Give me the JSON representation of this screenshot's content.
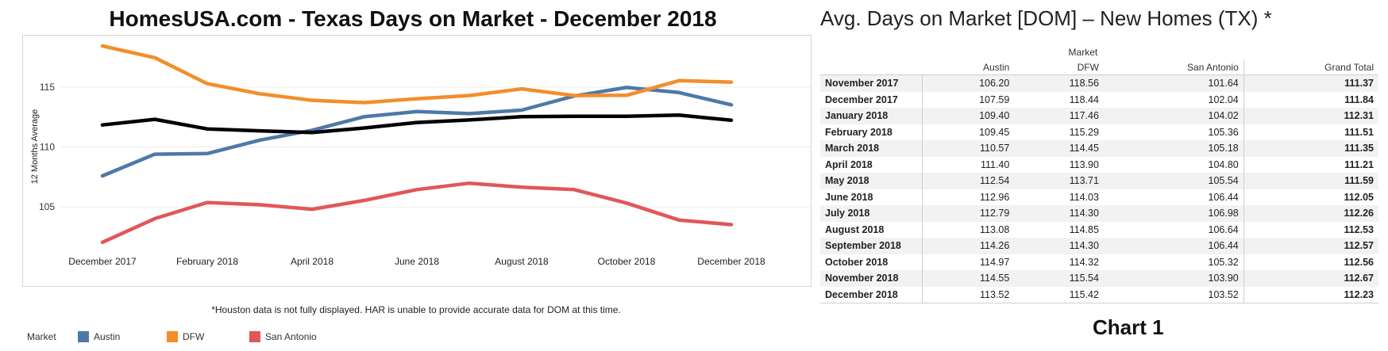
{
  "chart_data": [
    {
      "type": "line",
      "title": "HomesUSA.com - Texas Days on Market - December 2018",
      "ylabel": "12 Months Average",
      "xlabel": "",
      "x": [
        "December 2017",
        "January 2018",
        "February 2018",
        "March 2018",
        "April 2018",
        "May 2018",
        "June 2018",
        "July 2018",
        "August 2018",
        "September 2018",
        "October 2018",
        "November 2018",
        "December 2018"
      ],
      "x_tick_labels": [
        "December 2017",
        "February 2018",
        "April 2018",
        "June 2018",
        "August 2018",
        "October 2018",
        "December 2018"
      ],
      "y_ticks": [
        105,
        110,
        115
      ],
      "ylim": [
        101.3,
        119.3
      ],
      "grid": true,
      "series": [
        {
          "name": "Austin",
          "color": "#4e79a7",
          "values": [
            107.59,
            109.4,
            109.45,
            110.57,
            111.4,
            112.54,
            112.96,
            112.79,
            113.08,
            114.26,
            114.97,
            114.55,
            113.52
          ]
        },
        {
          "name": "DFW",
          "color": "#f28e2b",
          "values": [
            118.44,
            117.46,
            115.29,
            114.45,
            113.9,
            113.71,
            114.03,
            114.3,
            114.85,
            114.3,
            114.32,
            115.54,
            115.42
          ]
        },
        {
          "name": "San Antonio",
          "color": "#e15759",
          "values": [
            102.04,
            104.02,
            105.36,
            105.18,
            104.8,
            105.54,
            106.44,
            106.98,
            106.64,
            106.44,
            105.32,
            103.9,
            103.52
          ]
        },
        {
          "color": "#000000",
          "values": [
            111.84,
            112.31,
            111.51,
            111.35,
            111.21,
            111.59,
            112.05,
            112.26,
            112.53,
            112.57,
            112.56,
            112.67,
            112.23
          ]
        }
      ],
      "legend_position": "bottom-left",
      "note": "*Houston data is not fully displayed. HAR is unable to provide accurate data for DOM at this time."
    },
    {
      "type": "table",
      "title": "Avg. Days on Market [DOM] – New Homes (TX) *",
      "group_header": "Market",
      "columns": [
        "Austin",
        "DFW",
        "San Antonio",
        "Grand Total"
      ],
      "rows": [
        {
          "label": "November 2017",
          "values": [
            "106.20",
            "118.56",
            "101.64",
            "111.37"
          ]
        },
        {
          "label": "December 2017",
          "values": [
            "107.59",
            "118.44",
            "102.04",
            "111.84"
          ]
        },
        {
          "label": "January 2018",
          "values": [
            "109.40",
            "117.46",
            "104.02",
            "112.31"
          ]
        },
        {
          "label": "February 2018",
          "values": [
            "109.45",
            "115.29",
            "105.36",
            "111.51"
          ]
        },
        {
          "label": "March 2018",
          "values": [
            "110.57",
            "114.45",
            "105.18",
            "111.35"
          ]
        },
        {
          "label": "April 2018",
          "values": [
            "111.40",
            "113.90",
            "104.80",
            "111.21"
          ]
        },
        {
          "label": "May 2018",
          "values": [
            "112.54",
            "113.71",
            "105.54",
            "111.59"
          ]
        },
        {
          "label": "June 2018",
          "values": [
            "112.96",
            "114.03",
            "106.44",
            "112.05"
          ]
        },
        {
          "label": "July 2018",
          "values": [
            "112.79",
            "114.30",
            "106.98",
            "112.26"
          ]
        },
        {
          "label": "August 2018",
          "values": [
            "113.08",
            "114.85",
            "106.64",
            "112.53"
          ]
        },
        {
          "label": "September 2018",
          "values": [
            "114.26",
            "114.30",
            "106.44",
            "112.57"
          ]
        },
        {
          "label": "October 2018",
          "values": [
            "114.97",
            "114.32",
            "105.32",
            "112.56"
          ]
        },
        {
          "label": "November 2018",
          "values": [
            "114.55",
            "115.54",
            "103.90",
            "112.67"
          ]
        },
        {
          "label": "December 2018",
          "values": [
            "113.52",
            "115.42",
            "103.52",
            "112.23"
          ]
        }
      ]
    }
  ],
  "legend": {
    "title": "Market"
  },
  "caption": "Chart 1"
}
